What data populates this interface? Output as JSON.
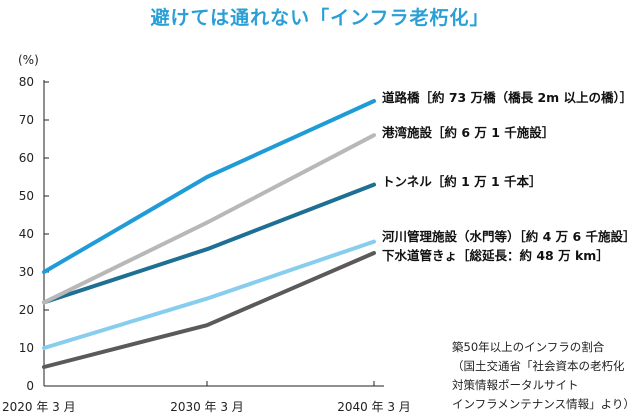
{
  "chart_data": {
    "type": "line",
    "title": "避けては通れない「インフラ老朽化」",
    "ylabel": "(%)",
    "x": [
      "2020 年 3 月",
      "2030 年 3 月",
      "2040 年 3 月"
    ],
    "ylim": [
      0,
      80
    ],
    "yticks": [
      0,
      10,
      20,
      30,
      40,
      50,
      60,
      70,
      80
    ],
    "grid": false,
    "legend": "inline-right",
    "series": [
      {
        "name": "道路橋［約 73 万橋（橋長 2m 以上の橋）］",
        "values": [
          30,
          55,
          75
        ],
        "color": "#1f9bd7"
      },
      {
        "name": "港湾施設［約 6 万 1 千施設］",
        "values": [
          22,
          43,
          66
        ],
        "color": "#b8b8b8"
      },
      {
        "name": "トンネル［約 1 万 1 千本］",
        "values": [
          22,
          36,
          53
        ],
        "color": "#1d6f93"
      },
      {
        "name": "河川管理施設（水門等）［約 4 万 6 千施設］",
        "values": [
          10,
          23,
          38
        ],
        "color": "#86cdee"
      },
      {
        "name": "下水道管きょ［総延長：約 48 万 km］",
        "values": [
          5,
          16,
          35
        ],
        "color": "#5a5a5a"
      }
    ],
    "annotation": [
      "築50年以上のインフラの割合",
      "（国土交通省「社会資本の老朽化",
      "対策情報ポータルサイト",
      "インフラメンテナンス情報」より）"
    ]
  }
}
